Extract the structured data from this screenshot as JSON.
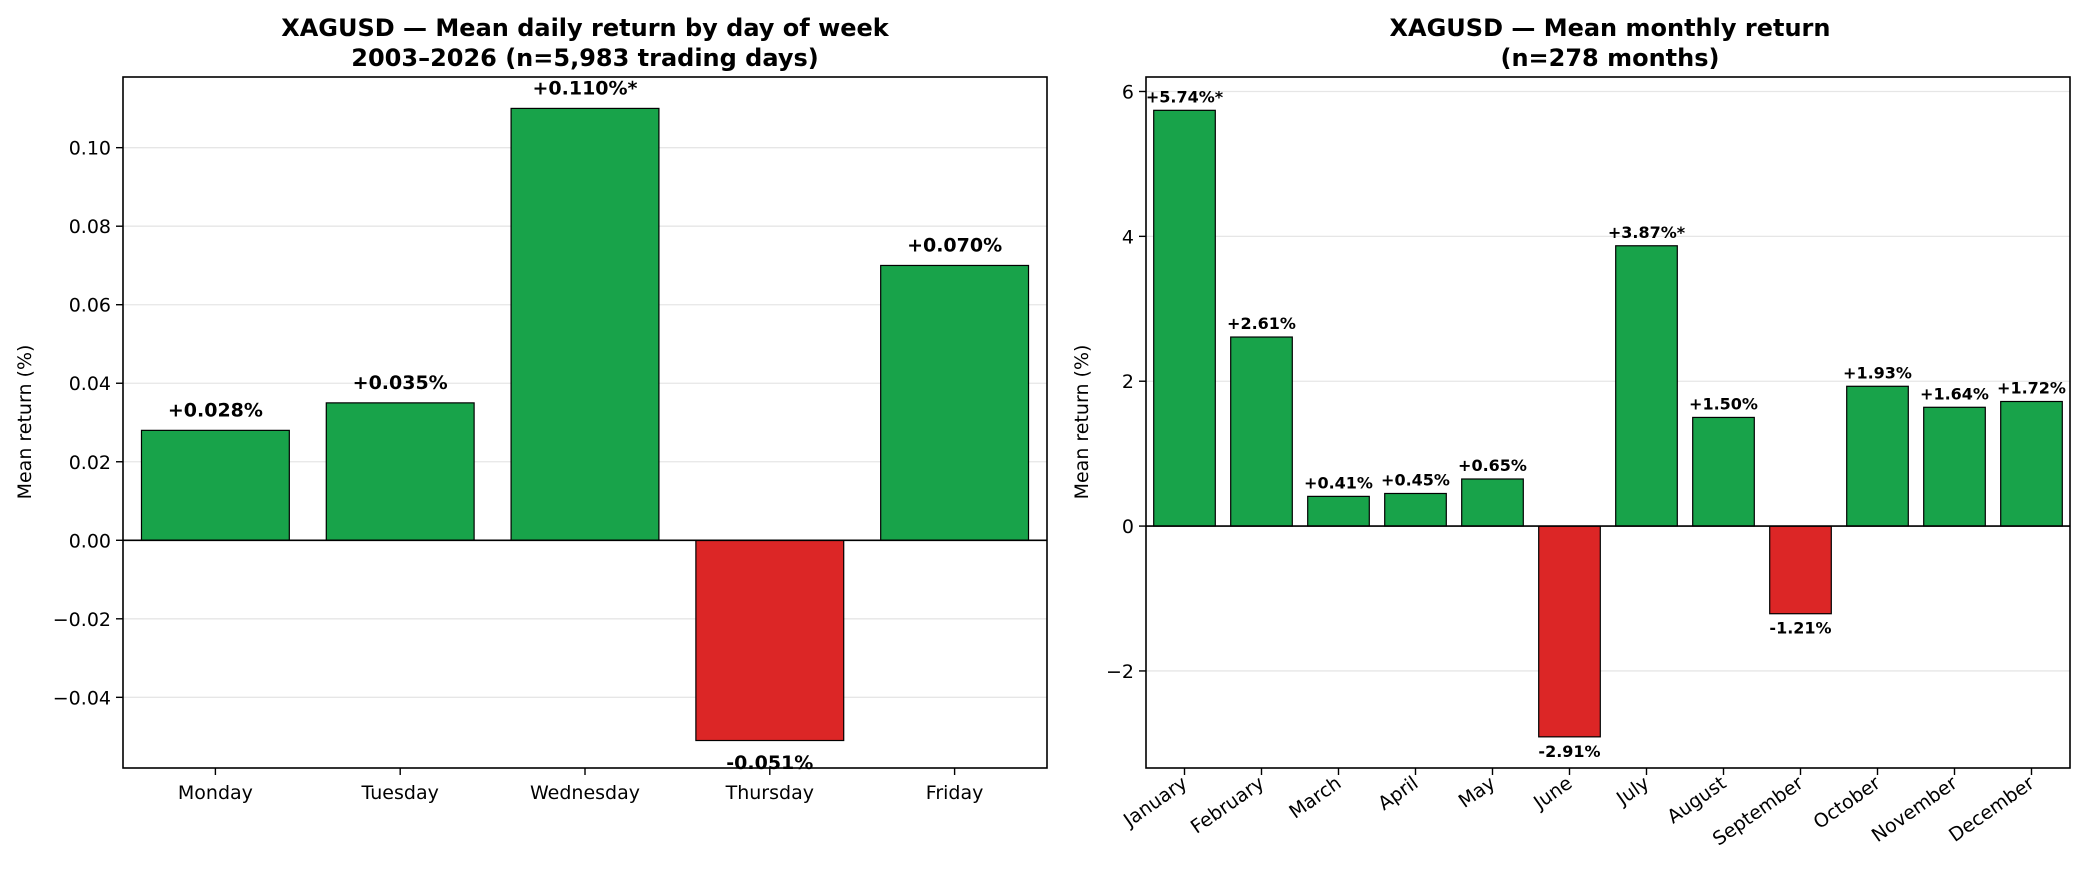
{
  "colors": {
    "positive": "#18a34a",
    "negative": "#dc2626",
    "edge": "#000000",
    "grid": "#e6e6e6"
  },
  "chart_data": [
    {
      "type": "bar",
      "title": "XAGUSD — Mean daily return by day of week",
      "subtitle": "2003–2026 (n=5,983 trading days)",
      "xlabel": "",
      "ylabel": "Mean return (%)",
      "categories": [
        "Monday",
        "Tuesday",
        "Wednesday",
        "Thursday",
        "Friday"
      ],
      "values": [
        0.028,
        0.035,
        0.11,
        -0.051,
        0.07
      ],
      "labels": [
        "+0.028%",
        "+0.035%",
        "+0.110%*",
        "-0.051%",
        "+0.070%"
      ],
      "ylim": [
        -0.058,
        0.118
      ],
      "yticks": [
        -0.04,
        -0.02,
        0.0,
        0.02,
        0.04,
        0.06,
        0.08,
        0.1
      ],
      "ytick_labels": [
        "−0.04",
        "−0.02",
        "0.00",
        "0.02",
        "0.04",
        "0.06",
        "0.08",
        "0.10"
      ],
      "grid": "horizontal",
      "xtick_rotation": 0
    },
    {
      "type": "bar",
      "title": "XAGUSD — Mean monthly return",
      "subtitle": "(n=278 months)",
      "xlabel": "",
      "ylabel": "Mean return (%)",
      "categories": [
        "January",
        "February",
        "March",
        "April",
        "May",
        "June",
        "July",
        "August",
        "September",
        "October",
        "November",
        "December"
      ],
      "values": [
        5.74,
        2.61,
        0.41,
        0.45,
        0.65,
        -2.91,
        3.87,
        1.5,
        -1.21,
        1.93,
        1.64,
        1.72
      ],
      "labels": [
        "+5.74%*",
        "+2.61%",
        "+0.41%",
        "+0.45%",
        "+0.65%",
        "-2.91%",
        "+3.87%*",
        "+1.50%",
        "-1.21%",
        "+1.93%",
        "+1.64%",
        "+1.72%"
      ],
      "ylim": [
        -3.34,
        6.2
      ],
      "yticks": [
        -2,
        0,
        2,
        4,
        6
      ],
      "ytick_labels": [
        "−2",
        "0",
        "2",
        "4",
        "6"
      ],
      "grid": "horizontal",
      "xtick_rotation": -35
    }
  ]
}
